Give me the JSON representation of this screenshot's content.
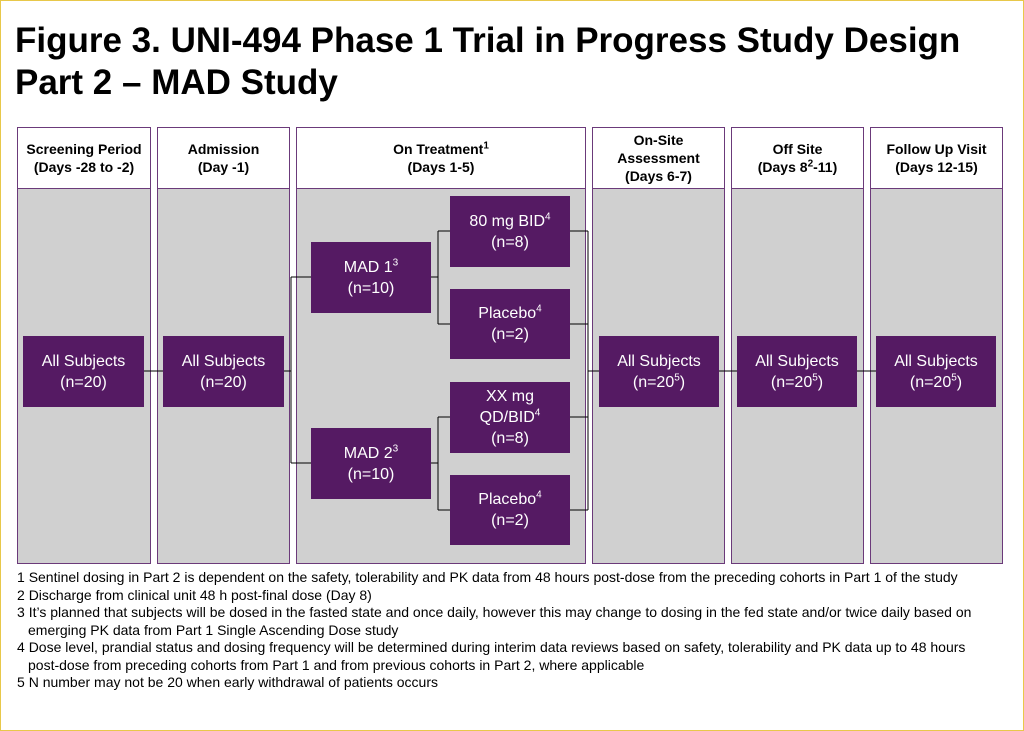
{
  "title": [
    "Figure 3. UNI-494 Phase 1 Trial in Progress Study Design",
    "Part 2 – MAD Study"
  ],
  "columns": [
    {
      "header": [
        [
          "Screening Period"
        ],
        [
          "(Days -28 to -2)"
        ]
      ]
    },
    {
      "header": [
        [
          "Admission"
        ],
        [
          "(Day -1)"
        ]
      ]
    },
    {
      "header": [
        [
          "On Treatment",
          {
            "sup": "1"
          }
        ],
        [
          "(Days 1-5)"
        ]
      ]
    },
    {
      "header": [
        [
          "On-Site"
        ],
        [
          "Assessment"
        ],
        [
          "(Days 6-7)"
        ]
      ]
    },
    {
      "header": [
        [
          "Off Site"
        ],
        [
          "(Days 8",
          {
            "sup": "2"
          },
          "-11)"
        ]
      ]
    },
    {
      "header": [
        [
          "Follow Up Visit"
        ],
        [
          "(Days 12-15)"
        ]
      ]
    }
  ],
  "boxes": [
    {
      "lines": [
        [
          "All Subjects"
        ],
        [
          "(n=20)"
        ]
      ]
    },
    {
      "lines": [
        [
          "All Subjects"
        ],
        [
          "(n=20)"
        ]
      ]
    },
    {
      "lines": [
        [
          "MAD 1",
          {
            "sup": "3"
          }
        ],
        [
          "(n=10)"
        ]
      ]
    },
    {
      "lines": [
        [
          "MAD 2",
          {
            "sup": "3"
          }
        ],
        [
          "(n=10)"
        ]
      ]
    },
    {
      "lines": [
        [
          "80 mg BID",
          {
            "sup": "4"
          }
        ],
        [
          "(n=8)"
        ]
      ]
    },
    {
      "lines": [
        [
          "Placebo",
          {
            "sup": "4"
          }
        ],
        [
          "(n=2)"
        ]
      ]
    },
    {
      "lines": [
        [
          "XX mg"
        ],
        [
          "QD/BID",
          {
            "sup": "4"
          }
        ],
        [
          "(n=8)"
        ]
      ]
    },
    {
      "lines": [
        [
          "Placebo",
          {
            "sup": "4"
          }
        ],
        [
          "(n=2)"
        ]
      ]
    },
    {
      "lines": [
        [
          "All Subjects"
        ],
        [
          "(n=20",
          {
            "sup": "5"
          },
          ")"
        ]
      ]
    },
    {
      "lines": [
        [
          "All Subjects"
        ],
        [
          "(n=20",
          {
            "sup": "5"
          },
          ")"
        ]
      ]
    },
    {
      "lines": [
        [
          "All Subjects"
        ],
        [
          "(n=20",
          {
            "sup": "5"
          },
          ")"
        ]
      ]
    }
  ],
  "footnotes": [
    {
      "number": "1",
      "text": "Sentinel dosing in Part 2 is dependent on the safety, tolerability and PK data from 48 hours post-dose from the preceding cohorts in Part 1 of the study"
    },
    {
      "number": "2",
      "text": "Discharge from clinical unit 48 h post-final dose (Day 8)"
    },
    {
      "number": "3",
      "text": "It’s planned that subjects will be dosed in the fasted state and once daily, however this may change to dosing in the fed state and/or twice daily based on emerging PK data from Part 1 Single Ascending Dose study"
    },
    {
      "number": "4",
      "text": "Dose level, prandial status and dosing frequency will be determined during interim data reviews based on safety, tolerability and PK data up to 48 hours post-dose from preceding cohorts from Part 1 and from previous cohorts in Part 2, where applicable"
    },
    {
      "number": "5",
      "text": "N number may not be 20 when early withdrawal of patients occurs"
    }
  ]
}
